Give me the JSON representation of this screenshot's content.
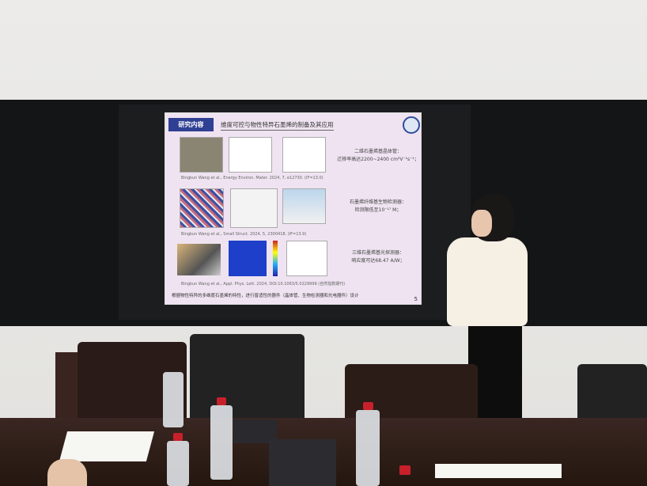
{
  "slide": {
    "section_tag": "研究内容",
    "title": "维度可控与物性特异石墨烯的制备及其应用",
    "citations": [
      "Bingkun Wang et al., Energy Environ. Mater. 2024, 7, e12730. (IF=13.0)",
      "Bingkun Wang et al., Small Struct. 2024, 5, 2300418. (IF=13.9)",
      "Bingkun Wang et al., Appl. Phys. Lett. 2024, DOI:10.1063/5.0229999 (自然指数期刊)"
    ],
    "bullets": [
      {
        "line1": "二维石墨烯基晶体管：",
        "line2": "迁移率高达2200~2400 cm²V⁻¹s⁻¹；"
      },
      {
        "line1": "石墨烯纤维基生物检测器：",
        "line2": "检测限低至10⁻¹⁷ M；"
      },
      {
        "line1": "三维石墨烯基光探测器：",
        "line2": "响应度可达68.47 A/W；"
      }
    ],
    "summary": "根据物性特异的多维度石墨烯的特性，进行普适性的器件（晶体管、生物检测器和光电器件）设计",
    "page_number": "5"
  },
  "colors": {
    "tag": "#2f3f93",
    "slide_bg": "#efe3f1",
    "board": "#141516"
  }
}
